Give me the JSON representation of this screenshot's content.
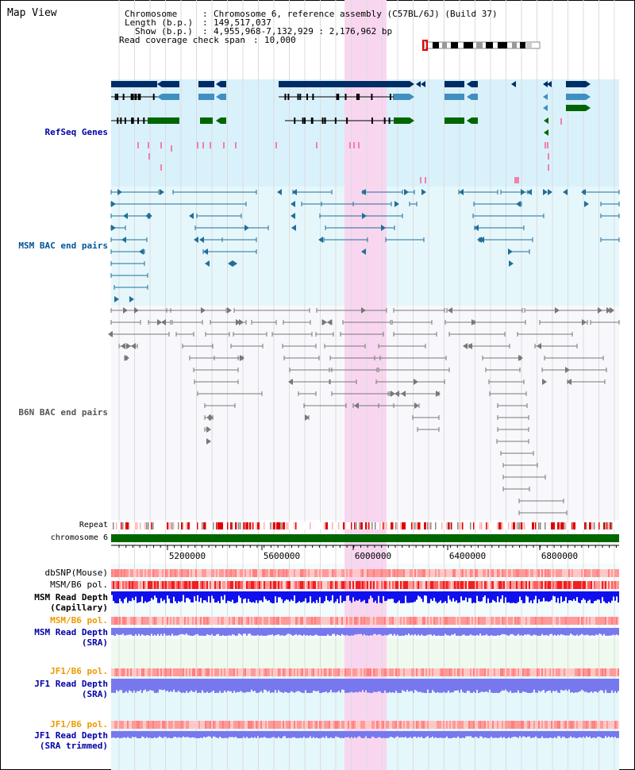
{
  "view_title": "Map View",
  "header": {
    "chromosome_key": "Chromosome",
    "chromosome_val": "Chromosome 6, reference assembly (C57BL/6J) (Build 37)",
    "length_key": "Length (b.p.)",
    "length_val": "149,517,037",
    "show_key": "Show (b.p.)",
    "show_val": "4,955,968-7,132,929 : 2,176,962 bp",
    "coverage_key": "Read coverage check span",
    "coverage_val": "10,000"
  },
  "tracks": {
    "refseq": {
      "label": "RefSeq Genes",
      "color": "#0000aa"
    },
    "msm_bac": {
      "label": "MSM BAC end pairs",
      "color": "#005599"
    },
    "b6n_bac": {
      "label": "B6N BAC end pairs",
      "color": "#555555"
    },
    "repeat": {
      "label": "Repeat"
    },
    "chromosome": {
      "label": "chromosome 6"
    },
    "dbsnp": {
      "label": "dbSNP(Mouse)"
    },
    "msm_b6_pol": {
      "label": "MSM/B6 pol."
    },
    "msm_depth_cap": {
      "label": "MSM Read Depth",
      "sub": "(Capillary)"
    },
    "msm_b6_pol2": {
      "label": "MSM/B6 pol.",
      "color": "#ee9900"
    },
    "msm_depth_sra": {
      "label": "MSM Read Depth",
      "sub": "(SRA)",
      "color": "#0000aa"
    },
    "jf1_b6_pol": {
      "label": "JF1/B6 pol.",
      "color": "#ee9900"
    },
    "jf1_depth_sra": {
      "label": "JF1 Read Depth",
      "sub": "(SRA)",
      "color": "#0000aa"
    },
    "jf1_b6_pol2": {
      "label": "JF1/B6 pol.",
      "color": "#ee9900"
    },
    "jf1_depth_trim": {
      "label": "JF1 Read Depth",
      "sub": "(SRA trimmed)",
      "color": "#0000aa"
    }
  },
  "ruler": {
    "ticks": [
      "5200000",
      "5600000",
      "6000000",
      "6400000",
      "6800000"
    ]
  },
  "colors": {
    "highlight": "#f9d6f0",
    "refseq_bg": "#d9f1fb",
    "msm_bg": "#e6f7fb",
    "gene_dark": "#002d66",
    "gene_mid": "#3f8fc0",
    "gene_green": "#006600",
    "repeat_red": "#e00000",
    "depth_blue": "#1010ee",
    "depth_light": "#7878ee"
  }
}
